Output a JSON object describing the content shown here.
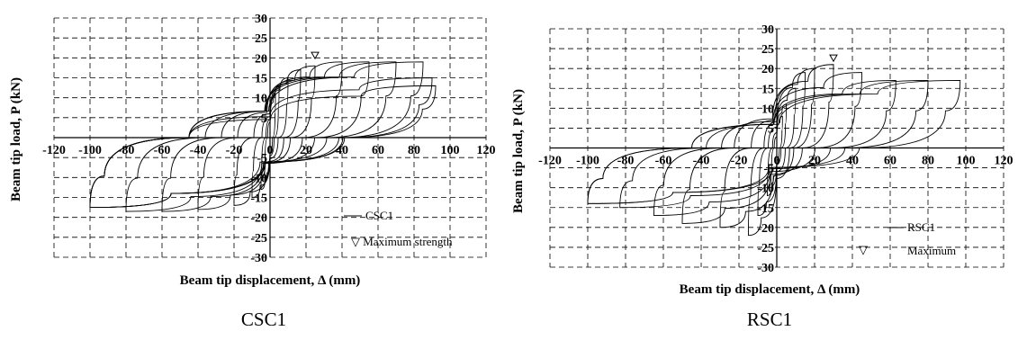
{
  "chart_data": [
    {
      "type": "line",
      "caption": "CSC1",
      "xlabel": "Beam tip displacement, Δ (mm)",
      "ylabel": "Beam tip load, P (kN)",
      "xlim": [
        -120,
        120
      ],
      "ylim": [
        -30,
        30
      ],
      "x_ticks": [
        "-120",
        "-100",
        "-80",
        "-60",
        "-40",
        "-20",
        "0",
        "20",
        "40",
        "60",
        "80",
        "100",
        "120"
      ],
      "y_ticks": [
        "-30",
        "-25",
        "-20",
        "-15",
        "-10",
        "-5",
        "0",
        "5",
        "10",
        "15",
        "20",
        "25",
        "30"
      ],
      "grid": true,
      "legend": [
        "CSC1",
        "▽ Maximum strength"
      ],
      "legend_placement": "bottom-right",
      "series": [
        {
          "name": "CSC1",
          "peaks_pos": [
            [
              3,
              11
            ],
            [
              5,
              13
            ],
            [
              10,
              15
            ],
            [
              17,
              17
            ],
            [
              25,
              18
            ],
            [
              40,
              19
            ],
            [
              55,
              19
            ],
            [
              70,
              19
            ],
            [
              85,
              19
            ],
            [
              90,
              15
            ],
            [
              92,
              13
            ]
          ],
          "peaks_neg": [
            [
              -3,
              -11
            ],
            [
              -5,
              -13
            ],
            [
              -10,
              -15
            ],
            [
              -20,
              -17
            ],
            [
              -40,
              -18
            ],
            [
              -60,
              -18.5
            ],
            [
              -80,
              -18.5
            ],
            [
              -100,
              -17.5
            ]
          ]
        }
      ],
      "max_strength_point": [
        25,
        20.5
      ]
    },
    {
      "type": "line",
      "caption": "RSC1",
      "xlabel": "Beam tip displacement, Δ (mm)",
      "ylabel": "Beam tip load, P (kN)",
      "xlim": [
        -120,
        120
      ],
      "ylim": [
        -30,
        30
      ],
      "x_ticks": [
        "-120",
        "-100",
        "-80",
        "-60",
        "-40",
        "-20",
        "0",
        "20",
        "40",
        "60",
        "80",
        "100",
        "120"
      ],
      "y_ticks": [
        "-30",
        "-25",
        "-20",
        "-15",
        "-10",
        "-5",
        "0",
        "5",
        "10",
        "15",
        "20",
        "25",
        "30"
      ],
      "grid": true,
      "legend": [
        "RSC1",
        "Maximum"
      ],
      "legend_placement": "bottom-right",
      "series": [
        {
          "name": "RSC1",
          "peaks_pos": [
            [
              3,
              8
            ],
            [
              5,
              11
            ],
            [
              10,
              15
            ],
            [
              15,
              19
            ],
            [
              20,
              20
            ],
            [
              30,
              21
            ],
            [
              45,
              19
            ],
            [
              63,
              17
            ],
            [
              80,
              17
            ],
            [
              97,
              17
            ]
          ],
          "peaks_neg": [
            [
              -3,
              -9
            ],
            [
              -5,
              -12
            ],
            [
              -10,
              -17
            ],
            [
              -15,
              -22
            ],
            [
              -30,
              -20
            ],
            [
              -50,
              -19
            ],
            [
              -65,
              -17
            ],
            [
              -83,
              -15
            ],
            [
              -100,
              -14
            ]
          ]
        }
      ],
      "max_strength_point": [
        30,
        22.5
      ]
    }
  ]
}
